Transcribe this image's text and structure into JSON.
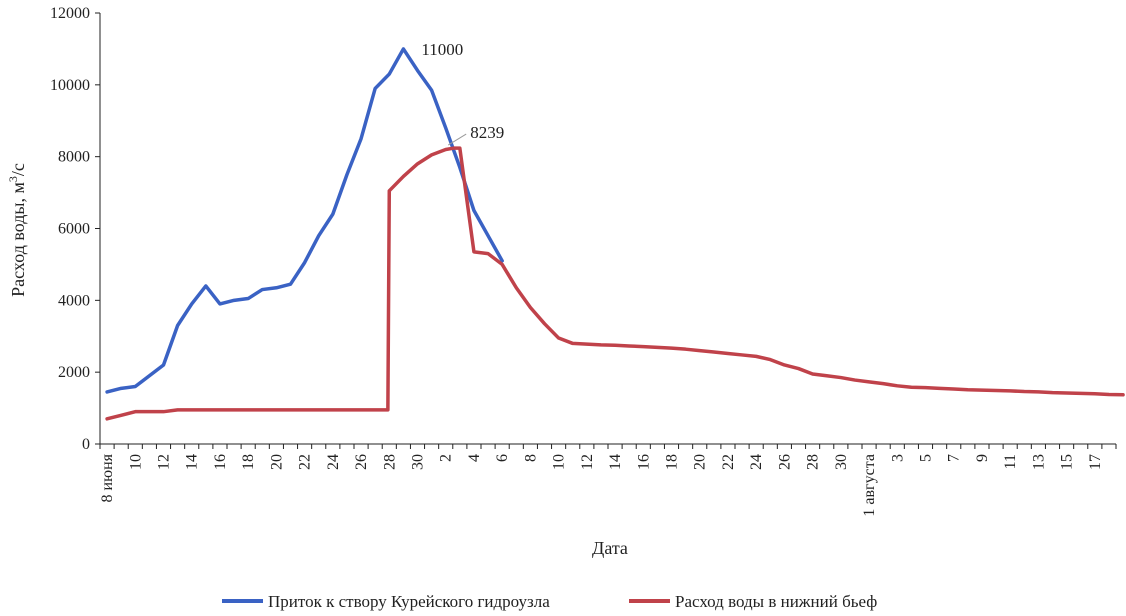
{
  "chart_data": {
    "type": "line",
    "title": "",
    "xlabel": "Дата",
    "ylabel": "Расход воды, м³/с",
    "ylabel_base": "Расход воды, м",
    "ylabel_sup": "3",
    "ylabel_tail": "/с",
    "ylim": [
      0,
      12000
    ],
    "yticks": [
      "0",
      "2000",
      "4000",
      "6000",
      "8000",
      "10000",
      "12000"
    ],
    "grid": false,
    "legend_position": "bottom",
    "x_tick_labels": [
      "8 июня",
      "10",
      "12",
      "14",
      "16",
      "18",
      "20",
      "22",
      "24",
      "26",
      "28",
      "30",
      "2",
      "4",
      "6",
      "8",
      "10",
      "12",
      "14",
      "16",
      "18",
      "20",
      "22",
      "24",
      "26",
      "28",
      "30",
      "1 августа",
      "3",
      "5",
      "7",
      "9",
      "11",
      "13",
      "15",
      "17"
    ],
    "x_tick_day_index": [
      0,
      2,
      4,
      6,
      8,
      10,
      12,
      14,
      16,
      18,
      20,
      22,
      24,
      26,
      28,
      30,
      32,
      34,
      36,
      38,
      40,
      42,
      44,
      46,
      48,
      50,
      52,
      54,
      56,
      58,
      60,
      62,
      64,
      66,
      68,
      70
    ],
    "x_day_count": 72,
    "series": [
      {
        "name": "Приток к створу Курейского гидроузла",
        "color": "#3a62c4",
        "x": [
          0,
          1,
          2,
          3,
          4,
          5,
          6,
          7,
          8,
          9,
          10,
          11,
          12,
          13,
          14,
          15,
          16,
          17,
          18,
          19,
          20,
          21,
          22,
          23,
          24,
          25,
          26,
          27,
          28
        ],
        "y": [
          1450,
          1550,
          1600,
          1900,
          2200,
          3300,
          3900,
          4400,
          3900,
          4000,
          4050,
          4300,
          4350,
          4450,
          5050,
          5800,
          6400,
          7500,
          8500,
          9900,
          10300,
          11000,
          10400,
          9850,
          8800,
          7700,
          6500,
          5800,
          5100
        ]
      },
      {
        "name": "Расход воды в нижний бьеф",
        "color": "#c0424a",
        "x": [
          0,
          1,
          2,
          3,
          4,
          5,
          6,
          7,
          8,
          9,
          10,
          11,
          12,
          13,
          14,
          15,
          16,
          17,
          18,
          19,
          19.9,
          20,
          21,
          22,
          23,
          24,
          24.6,
          25,
          26,
          27,
          28,
          29,
          30,
          31,
          32,
          33,
          34,
          35,
          36,
          37,
          38,
          39,
          40,
          41,
          42,
          43,
          44,
          45,
          46,
          47,
          48,
          49,
          50,
          51,
          52,
          53,
          54,
          55,
          56,
          57,
          58,
          59,
          60,
          61,
          62,
          63,
          64,
          65,
          66,
          67,
          68,
          69,
          70,
          71,
          72
        ],
        "y": [
          700,
          800,
          900,
          900,
          900,
          950,
          950,
          950,
          950,
          950,
          950,
          950,
          950,
          950,
          950,
          950,
          950,
          950,
          950,
          950,
          950,
          7050,
          7450,
          7800,
          8050,
          8200,
          8239,
          8239,
          5350,
          5300,
          5000,
          4350,
          3800,
          3350,
          2950,
          2800,
          2780,
          2760,
          2750,
          2730,
          2710,
          2690,
          2670,
          2640,
          2600,
          2560,
          2520,
          2480,
          2440,
          2350,
          2200,
          2100,
          1950,
          1900,
          1850,
          1780,
          1730,
          1680,
          1620,
          1580,
          1570,
          1550,
          1530,
          1510,
          1500,
          1490,
          1480,
          1460,
          1450,
          1430,
          1420,
          1410,
          1400,
          1380,
          1370
        ]
      }
    ],
    "annotations": [
      {
        "text": "11000",
        "series": 0,
        "x": 21,
        "y": 11000
      },
      {
        "text": "8239",
        "series": 1,
        "x": 24.6,
        "y": 8239
      }
    ],
    "legend": [
      {
        "label": "Приток к створу Курейского гидроузла",
        "color": "#3a62c4"
      },
      {
        "label": "Расход воды в нижний бьеф",
        "color": "#c0424a"
      }
    ]
  }
}
